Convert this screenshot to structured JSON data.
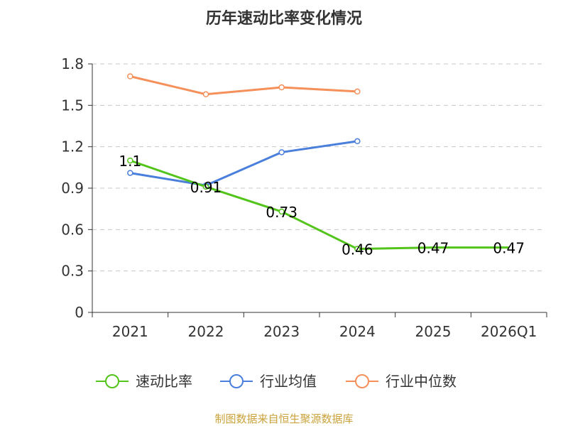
{
  "chart_data": {
    "type": "line",
    "title": "历年速动比率变化情况",
    "categories": [
      "2021",
      "2022",
      "2023",
      "2024",
      "2025",
      "2026Q1"
    ],
    "y_ticks": [
      "0",
      "0.3",
      "0.6",
      "0.9",
      "1.2",
      "1.5",
      "1.8"
    ],
    "ylim": [
      0,
      1.8
    ],
    "grid": true,
    "legend_position": "bottom",
    "series": [
      {
        "name": "速动比率",
        "color": "#52c41a",
        "values": [
          1.1,
          0.91,
          0.73,
          0.46,
          0.47,
          0.47
        ],
        "labels": [
          "1.1",
          "0.91",
          "0.73",
          "0.46",
          "0.47",
          "0.47"
        ]
      },
      {
        "name": "行业均值",
        "color": "#4a7fdc",
        "values": [
          1.01,
          0.92,
          1.16,
          1.24,
          null,
          null
        ]
      },
      {
        "name": "行业中位数",
        "color": "#f5905a",
        "values": [
          1.71,
          1.58,
          1.63,
          1.6,
          null,
          null
        ]
      }
    ],
    "source": "制图数据来自恒生聚源数据库"
  }
}
